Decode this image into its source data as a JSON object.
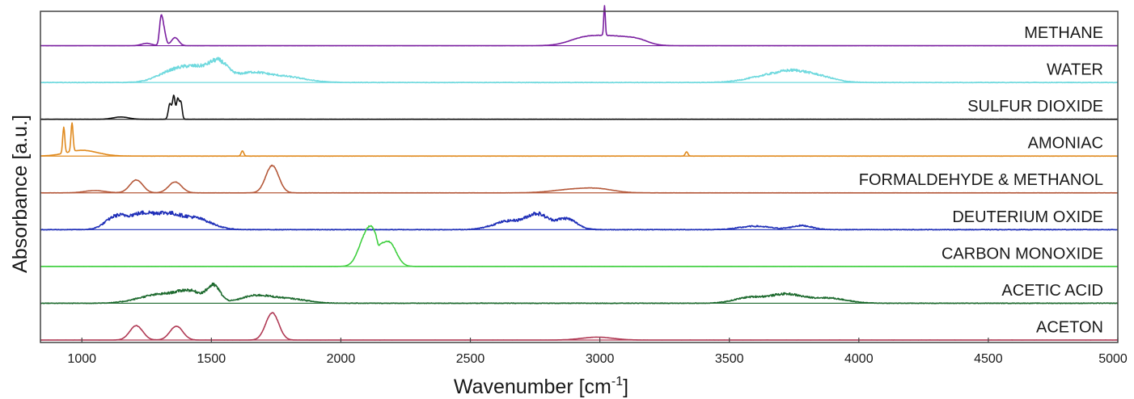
{
  "chart_data": {
    "type": "line",
    "xlabel_main": "Wavenumber [cm",
    "xlabel_sup": "-1",
    "xlabel_end": "]",
    "ylabel": "Absorbance [a.u.]",
    "xlim": [
      840,
      5000
    ],
    "x_ticks": [
      1000,
      1500,
      2000,
      2500,
      3000,
      3500,
      4000,
      4500,
      5000
    ],
    "x_tick_labels": [
      "1000",
      "1500",
      "2000",
      "2500",
      "3000",
      "3500",
      "4000",
      "4500",
      "5000"
    ],
    "series": [
      {
        "name": "METHANE",
        "color": "#7a1fa0",
        "noise": 0.01,
        "peaks": [
          [
            1305,
            0.75,
            6
          ],
          [
            1315,
            0.6,
            8
          ],
          [
            1360,
            0.28,
            14
          ],
          [
            1250,
            0.08,
            20
          ],
          [
            2940,
            0.25,
            60
          ],
          [
            3060,
            0.3,
            70
          ],
          [
            3150,
            0.12,
            40
          ],
          [
            3018,
            1.05,
            3
          ]
        ]
      },
      {
        "name": "WATER",
        "color": "#6fd9de",
        "noise": 0.06,
        "peaks": [
          [
            1350,
            0.35,
            60
          ],
          [
            1450,
            0.45,
            60
          ],
          [
            1530,
            0.55,
            35
          ],
          [
            1650,
            0.3,
            60
          ],
          [
            1780,
            0.2,
            80
          ],
          [
            3650,
            0.22,
            80
          ],
          [
            3750,
            0.28,
            60
          ],
          [
            3850,
            0.18,
            60
          ]
        ]
      },
      {
        "name": "SULFUR DIOXIDE",
        "color": "#111111",
        "noise": 0.01,
        "peaks": [
          [
            1150,
            0.08,
            30
          ],
          [
            1340,
            0.55,
            6
          ],
          [
            1355,
            0.8,
            5
          ],
          [
            1370,
            0.7,
            5
          ],
          [
            1382,
            0.6,
            5
          ]
        ]
      },
      {
        "name": "AMONIAC",
        "color": "#e08a1e",
        "noise": 0.01,
        "peaks": [
          [
            930,
            0.9,
            4
          ],
          [
            962,
            1.0,
            4
          ],
          [
            1000,
            0.2,
            60
          ],
          [
            1620,
            0.18,
            5
          ],
          [
            3335,
            0.15,
            5
          ]
        ]
      },
      {
        "name": "FORMALDEHYDE & METHANOL",
        "color": "#b5593a",
        "noise": 0.01,
        "peaks": [
          [
            1210,
            0.45,
            25
          ],
          [
            1360,
            0.38,
            25
          ],
          [
            1735,
            0.95,
            25
          ],
          [
            1050,
            0.08,
            40
          ],
          [
            2900,
            0.12,
            80
          ],
          [
            3000,
            0.1,
            60
          ]
        ]
      },
      {
        "name": "DEUTERIUM OXIDE",
        "color": "#1f2fb8",
        "noise": 0.07,
        "peaks": [
          [
            1130,
            0.42,
            40
          ],
          [
            1230,
            0.5,
            50
          ],
          [
            1330,
            0.45,
            50
          ],
          [
            1440,
            0.38,
            60
          ],
          [
            2650,
            0.3,
            60
          ],
          [
            2760,
            0.5,
            40
          ],
          [
            2870,
            0.38,
            40
          ],
          [
            3600,
            0.12,
            60
          ],
          [
            3780,
            0.14,
            40
          ]
        ]
      },
      {
        "name": "CARBON MONOXIDE",
        "color": "#3fcf3f",
        "noise": 0.01,
        "peaks": [
          [
            2095,
            0.95,
            28
          ],
          [
            2125,
            0.7,
            22
          ],
          [
            2185,
            0.85,
            28
          ],
          [
            2145,
            -0.2,
            6
          ]
        ]
      },
      {
        "name": "ACETIC ACID",
        "color": "#1d6a2e",
        "noise": 0.06,
        "peaks": [
          [
            1300,
            0.3,
            80
          ],
          [
            1420,
            0.35,
            50
          ],
          [
            1510,
            0.55,
            25
          ],
          [
            1670,
            0.25,
            60
          ],
          [
            1800,
            0.15,
            70
          ],
          [
            3580,
            0.2,
            60
          ],
          [
            3720,
            0.3,
            60
          ],
          [
            3880,
            0.18,
            70
          ]
        ]
      },
      {
        "name": "ACETON",
        "color": "#b03a55",
        "noise": 0.01,
        "peaks": [
          [
            1210,
            0.5,
            25
          ],
          [
            1365,
            0.48,
            25
          ],
          [
            1735,
            0.95,
            25
          ],
          [
            2990,
            0.1,
            60
          ]
        ]
      }
    ]
  }
}
